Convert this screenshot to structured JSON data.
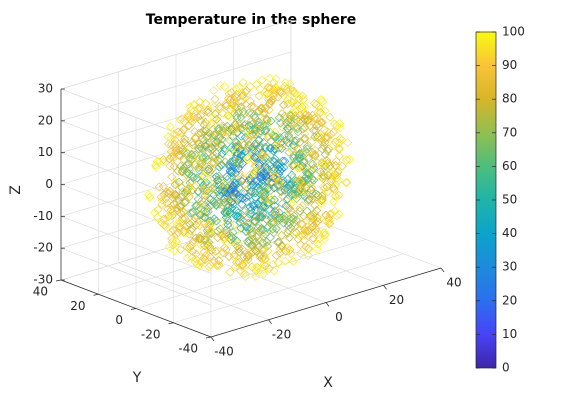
{
  "chart_data": {
    "type": "scatter3",
    "title": "Temperature in the sphere",
    "xlabel": "X",
    "ylabel": "Y",
    "zlabel": "Z",
    "xlim": [
      -40,
      40
    ],
    "ylim": [
      -40,
      40
    ],
    "zlim": [
      -30,
      30
    ],
    "x_ticks": [
      -40,
      -20,
      0,
      20,
      40
    ],
    "y_ticks": [
      -40,
      -20,
      0,
      20,
      40
    ],
    "z_ticks": [
      -30,
      -20,
      -10,
      0,
      10,
      20,
      30
    ],
    "marker": "diamond",
    "grid": true,
    "colorbar": {
      "location": "right",
      "limits": [
        0,
        100
      ],
      "ticks": [
        0,
        10,
        20,
        30,
        40,
        50,
        60,
        70,
        80,
        90,
        100
      ],
      "colormap": "parula"
    },
    "sphere": {
      "radius": 30,
      "color_rule": "temperature rises with distance from center",
      "point_count": 1400
    }
  }
}
